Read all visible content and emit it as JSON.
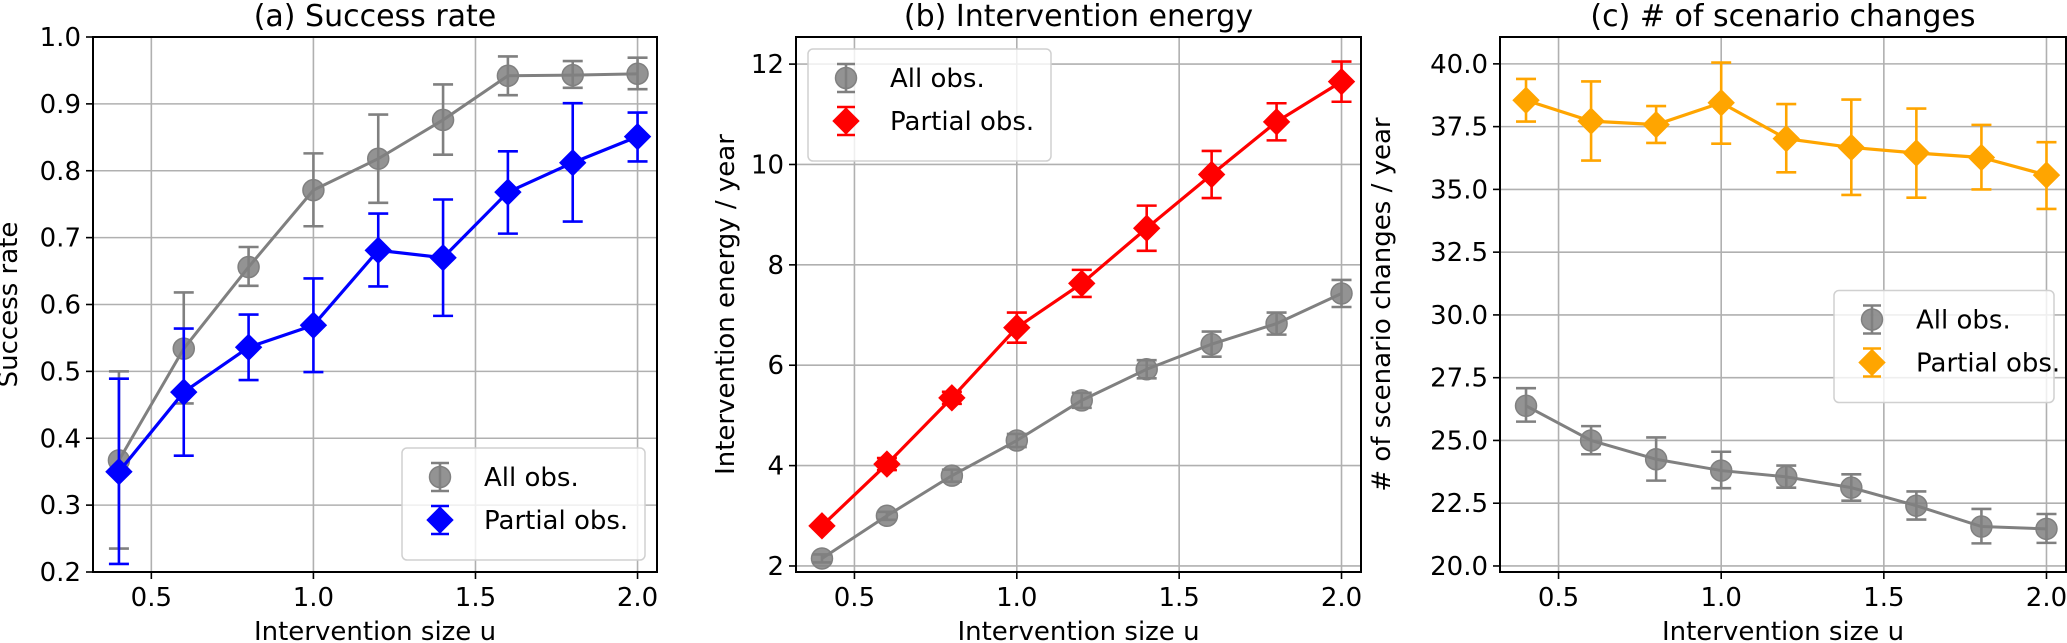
{
  "chart_data": [
    {
      "type": "line",
      "title": "(a) Success rate",
      "xlabel": "Intervention size u",
      "ylabel": "Success rate",
      "xlim": [
        0.32,
        2.06
      ],
      "ylim": [
        0.2,
        1.0
      ],
      "xticks": [
        0.5,
        1.0,
        1.5,
        2.0
      ],
      "xtick_labels": [
        "0.5",
        "1.0",
        "1.5",
        "2.0"
      ],
      "yticks": [
        0.2,
        0.3,
        0.4,
        0.5,
        0.6,
        0.7,
        0.8,
        0.9,
        1.0
      ],
      "ytick_labels": [
        "0.2",
        "0.3",
        "0.4",
        "0.5",
        "0.6",
        "0.7",
        "0.8",
        "0.9",
        "1.0"
      ],
      "grid": true,
      "legend_position": "lower-right",
      "x": [
        0.4,
        0.6,
        0.8,
        1.0,
        1.2,
        1.4,
        1.6,
        1.8,
        2.0
      ],
      "series": [
        {
          "name": "All obs.",
          "color": "#808080",
          "marker": "circle",
          "values": [
            0.367,
            0.534,
            0.656,
            0.771,
            0.818,
            0.876,
            0.942,
            0.943,
            0.945
          ],
          "err_low": [
            0.235,
            0.452,
            0.628,
            0.717,
            0.752,
            0.824,
            0.913,
            0.924,
            0.922
          ],
          "err_high": [
            0.5,
            0.618,
            0.686,
            0.826,
            0.884,
            0.929,
            0.971,
            0.964,
            0.969
          ]
        },
        {
          "name": "Partial obs.",
          "color": "#0000ff",
          "marker": "diamond",
          "values": [
            0.35,
            0.469,
            0.536,
            0.569,
            0.681,
            0.67,
            0.768,
            0.812,
            0.851
          ],
          "err_low": [
            0.212,
            0.374,
            0.487,
            0.499,
            0.627,
            0.583,
            0.706,
            0.724,
            0.814
          ],
          "err_high": [
            0.489,
            0.564,
            0.585,
            0.639,
            0.736,
            0.757,
            0.829,
            0.901,
            0.887
          ]
        }
      ]
    },
    {
      "type": "line",
      "title": "(b) Intervention energy",
      "xlabel": "Intervention size u",
      "ylabel": "Intervention energy / year",
      "xlim": [
        0.32,
        2.06
      ],
      "ylim": [
        1.88,
        12.54
      ],
      "xticks": [
        0.5,
        1.0,
        1.5,
        2.0
      ],
      "xtick_labels": [
        "0.5",
        "1.0",
        "1.5",
        "2.0"
      ],
      "yticks": [
        2,
        4,
        6,
        8,
        10,
        12
      ],
      "ytick_labels": [
        "2",
        "4",
        "6",
        "8",
        "10",
        "12"
      ],
      "grid": true,
      "legend_position": "upper-left",
      "x": [
        0.4,
        0.6,
        0.8,
        1.0,
        1.2,
        1.4,
        1.6,
        1.8,
        2.0
      ],
      "series": [
        {
          "name": "All obs.",
          "color": "#808080",
          "marker": "circle",
          "values": [
            2.15,
            3.0,
            3.8,
            4.5,
            5.3,
            5.92,
            6.42,
            6.83,
            7.43
          ],
          "err_low": [
            2.07,
            2.92,
            3.68,
            4.37,
            5.15,
            5.74,
            6.17,
            6.61,
            7.16
          ],
          "err_high": [
            2.23,
            3.08,
            3.92,
            4.63,
            5.45,
            6.1,
            6.67,
            7.05,
            7.7
          ]
        },
        {
          "name": "Partial obs.",
          "color": "#ff0000",
          "marker": "diamond",
          "values": [
            2.8,
            4.03,
            5.35,
            6.75,
            7.63,
            8.73,
            9.8,
            10.85,
            11.65
          ],
          "err_low": [
            2.75,
            3.91,
            5.23,
            6.45,
            7.36,
            8.28,
            9.33,
            10.48,
            11.25
          ],
          "err_high": [
            2.85,
            4.15,
            5.47,
            7.05,
            7.9,
            9.18,
            10.27,
            11.22,
            12.05
          ]
        }
      ]
    },
    {
      "type": "line",
      "title": "(c) # of scenario changes",
      "xlabel": "Intervention size u",
      "ylabel": "# of scenario changes / year",
      "xlim": [
        0.32,
        2.06
      ],
      "ylim": [
        19.76,
        41.07
      ],
      "xticks": [
        0.5,
        1.0,
        1.5,
        2.0
      ],
      "xtick_labels": [
        "0.5",
        "1.0",
        "1.5",
        "2.0"
      ],
      "yticks": [
        20.0,
        22.5,
        25.0,
        27.5,
        30.0,
        32.5,
        35.0,
        37.5,
        40.0
      ],
      "ytick_labels": [
        "20.0",
        "22.5",
        "25.0",
        "27.5",
        "30.0",
        "32.5",
        "35.0",
        "37.5",
        "40.0"
      ],
      "grid": true,
      "legend_position": "center-right",
      "x": [
        0.4,
        0.6,
        0.8,
        1.0,
        1.2,
        1.4,
        1.6,
        1.8,
        2.0
      ],
      "series": [
        {
          "name": "All obs.",
          "color": "#808080",
          "marker": "circle",
          "values": [
            26.38,
            25.0,
            24.25,
            23.8,
            23.55,
            23.12,
            22.4,
            21.57,
            21.48
          ],
          "err_low": [
            25.75,
            24.45,
            23.4,
            23.1,
            23.12,
            22.6,
            21.85,
            20.9,
            20.92
          ],
          "err_high": [
            27.08,
            25.57,
            25.12,
            24.55,
            24.0,
            23.65,
            22.97,
            22.27,
            22.07
          ]
        },
        {
          "name": "Partial obs.",
          "color": "#ffa500",
          "marker": "diamond",
          "values": [
            38.55,
            37.72,
            37.58,
            38.45,
            37.02,
            36.67,
            36.45,
            36.27,
            35.57
          ],
          "err_low": [
            37.7,
            36.15,
            36.85,
            36.82,
            35.68,
            34.78,
            34.67,
            35.0,
            34.22
          ],
          "err_high": [
            39.4,
            39.3,
            38.32,
            40.05,
            38.4,
            38.58,
            38.22,
            37.57,
            36.88
          ]
        }
      ]
    }
  ]
}
